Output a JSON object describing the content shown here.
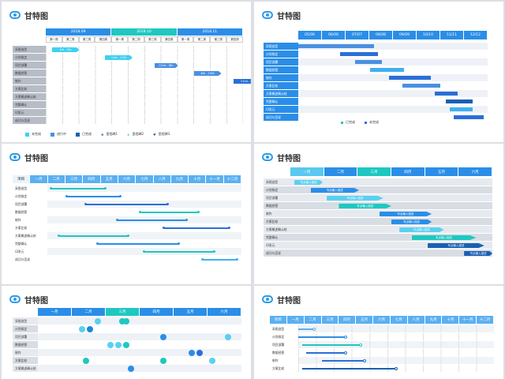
{
  "slide_title": "甘特图",
  "tasks": [
    "采图选型",
    "计划拟定",
    "项目部署",
    "数据经营",
    "制作",
    "方案比较",
    "方案概述确认结",
    "完整确认",
    "印发元",
    "成功与否说"
  ],
  "s1": {
    "months": [
      "2018.09",
      "2018.10",
      "2018.11"
    ],
    "weeks": [
      "第一周",
      "第二周",
      "第三周",
      "第四周",
      "第一周",
      "第二周",
      "第三周",
      "第四周",
      "第一周",
      "第二周",
      "第三周",
      "第四周"
    ],
    "bars": [
      "1th - 9th",
      "11st - 17th",
      "22nd - 8th",
      "4th - 15th",
      "11nd - 22nd",
      "24th - 17th",
      "24th - 29th",
      "5th - 10th",
      "21st - 28th",
      "27nd - 29th",
      "27th - 29th"
    ],
    "legend": [
      "未完成",
      "进行中",
      "已完成",
      "里程碑1",
      "里程碑2",
      "里程碑3"
    ]
  },
  "s2": {
    "dates": [
      "05/06",
      "06/06",
      "07/07",
      "08/08",
      "09/09",
      "10/10",
      "11/11",
      "12/12"
    ],
    "legend": [
      "已完成",
      "未完成"
    ]
  },
  "s3": {
    "header": [
      "项目",
      "一月",
      "二月",
      "三月",
      "四月",
      "五月",
      "六月",
      "七月",
      "八月",
      "九月",
      "十月",
      "十一月",
      "十二月"
    ]
  },
  "s4": {
    "months": [
      "一月",
      "二月",
      "三月",
      "四月",
      "五月",
      "六月"
    ],
    "bar_label": "写点输入描述"
  },
  "s5": {
    "months": [
      "一月",
      "二月",
      "三月",
      "四月",
      "五月",
      "六月"
    ]
  },
  "s6": {
    "header": [
      "项目",
      "一月",
      "二月",
      "三月",
      "四月",
      "五月",
      "六月",
      "七月",
      "八月",
      "九月",
      "十月",
      "十一月",
      "十二月"
    ]
  }
}
